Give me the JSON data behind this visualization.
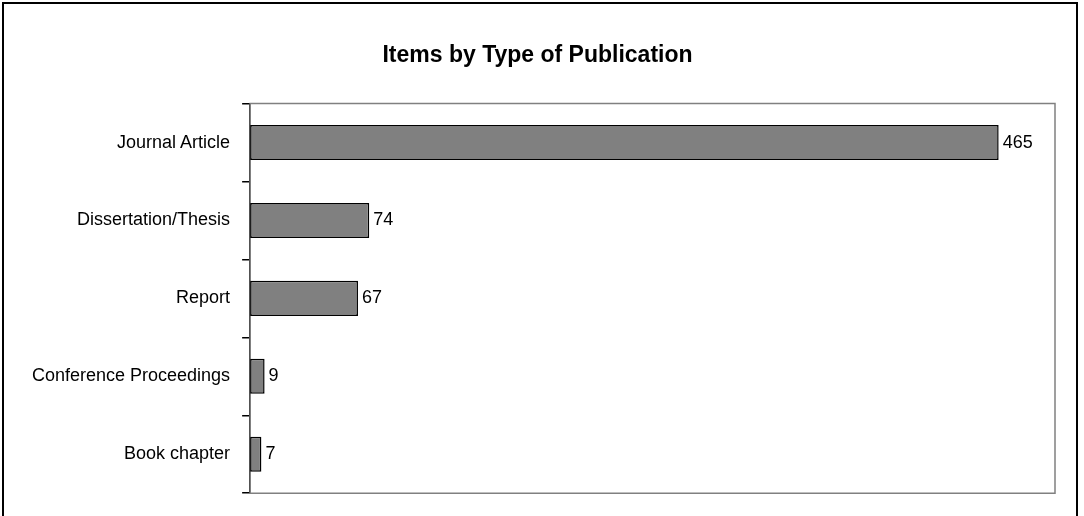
{
  "chart_data": {
    "type": "bar",
    "orientation": "horizontal",
    "title": "Items by Type of Publication",
    "categories": [
      "Journal Article",
      "Dissertation/Thesis",
      "Report",
      "Conference Proceedings",
      "Book chapter"
    ],
    "values": [
      465,
      74,
      67,
      9,
      7
    ],
    "color": "#808080",
    "data_labels": true
  }
}
